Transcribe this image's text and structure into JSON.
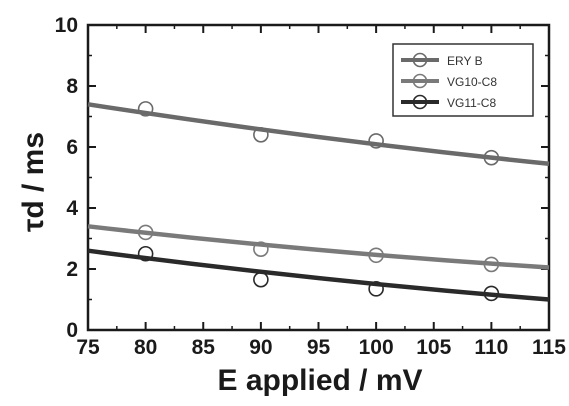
{
  "chart_data": {
    "type": "scatter",
    "title": "",
    "xlabel": "E applied / mV",
    "ylabel": "τd / ms",
    "xlim": [
      75,
      115
    ],
    "ylim": [
      0,
      10
    ],
    "x_ticks": [
      75,
      80,
      85,
      90,
      95,
      100,
      105,
      110,
      115
    ],
    "y_ticks": [
      0,
      2,
      4,
      6,
      8,
      10
    ],
    "grid": false,
    "legend_position": "top-right",
    "series": [
      {
        "name": "ERY B",
        "color": "#6a6a6a",
        "marker": "open-circle",
        "points": {
          "x": [
            80,
            90,
            100,
            110
          ],
          "y": [
            7.25,
            6.4,
            6.2,
            5.65
          ]
        },
        "fit_line": {
          "x": [
            75,
            115
          ],
          "y": [
            7.4,
            5.45
          ]
        }
      },
      {
        "name": "VG10-C8",
        "color": "#7a7a7a",
        "marker": "open-circle",
        "points": {
          "x": [
            80,
            90,
            100,
            110
          ],
          "y": [
            3.2,
            2.65,
            2.45,
            2.15
          ]
        },
        "fit_line": {
          "x": [
            75,
            115
          ],
          "y": [
            3.4,
            2.05
          ]
        }
      },
      {
        "name": "VG11-C8",
        "color": "#2a2a2a",
        "marker": "open-circle",
        "points": {
          "x": [
            80,
            90,
            100,
            110
          ],
          "y": [
            2.5,
            1.65,
            1.35,
            1.2
          ]
        },
        "fit_line": {
          "x": [
            75,
            115
          ],
          "y": [
            2.6,
            1.0
          ]
        }
      }
    ]
  }
}
